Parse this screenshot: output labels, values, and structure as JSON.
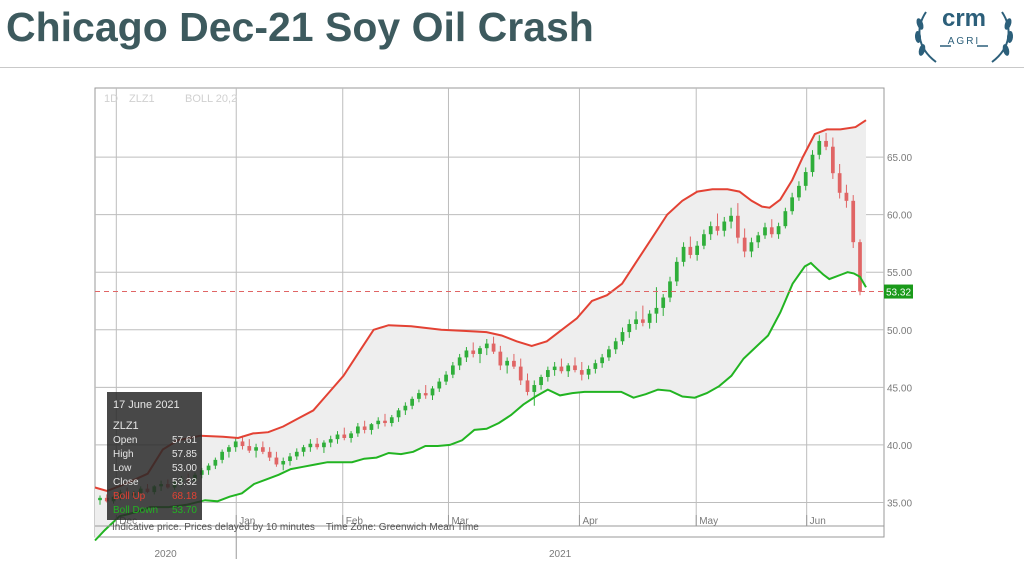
{
  "slide": {
    "title": "Chicago Dec-21 Soy Oil Crash",
    "logo_text": "crm",
    "logo_sub": "AGRI"
  },
  "chart_header": {
    "interval": "1D",
    "symbol": "ZLZ1",
    "indicator": "BOLL 20,2"
  },
  "info_box": {
    "date": "17 June 2021",
    "symbol": "ZLZ1",
    "rows": [
      {
        "label": "Open",
        "value": "57.61",
        "color": "#e6e6e6"
      },
      {
        "label": "High",
        "value": "57.85",
        "color": "#e6e6e6"
      },
      {
        "label": "Low",
        "value": "53.00",
        "color": "#e6e6e6"
      },
      {
        "label": "Close",
        "value": "53.32",
        "color": "#e6e6e6"
      },
      {
        "label": "Boll Up",
        "value": "68.18",
        "color": "#e34234"
      },
      {
        "label": "Boll Down",
        "value": "53.70",
        "color": "#22b422"
      }
    ]
  },
  "footer_note": "Indicative price. Prices delayed by 10 minutes    Time Zone: Greenwich Mean Time",
  "colors": {
    "up": "#2fae3a",
    "down": "#e06565",
    "boll_up": "#e34234",
    "boll_down": "#22b422",
    "band_fill": "#eeeeee",
    "last_price": "#1a9a1a",
    "title": "#3d5a5e"
  },
  "chart_data": {
    "type": "candlestick",
    "symbol": "ZLZ1",
    "ylim": [
      32,
      71
    ],
    "y_ticks": [
      "65.00",
      "60.00",
      "55.00",
      "50.00",
      "45.00",
      "40.00",
      "35.00"
    ],
    "x_months": [
      "Dec",
      "Jan",
      "Feb",
      "Mar",
      "Apr",
      "May",
      "Jun"
    ],
    "x_years": [
      "2020",
      "2021"
    ],
    "last_price": "53.32",
    "last_price_value": 53.32,
    "boll_upper": [
      [
        0,
        36.3
      ],
      [
        8,
        36.0
      ],
      [
        20,
        36.6
      ],
      [
        35,
        37.5
      ],
      [
        45,
        39.6
      ],
      [
        55,
        40.4
      ],
      [
        70,
        40.8
      ],
      [
        85,
        40.7
      ],
      [
        95,
        40.6
      ],
      [
        105,
        41.0
      ],
      [
        115,
        41.1
      ],
      [
        125,
        41.6
      ],
      [
        135,
        42.3
      ],
      [
        145,
        43.0
      ],
      [
        155,
        44.5
      ],
      [
        165,
        46.0
      ],
      [
        175,
        48.0
      ],
      [
        185,
        50.0
      ],
      [
        195,
        50.4
      ],
      [
        210,
        50.3
      ],
      [
        230,
        50.0
      ],
      [
        245,
        49.9
      ],
      [
        260,
        49.8
      ],
      [
        270,
        49.5
      ],
      [
        280,
        49.0
      ],
      [
        290,
        48.6
      ],
      [
        300,
        49.0
      ],
      [
        310,
        50.0
      ],
      [
        320,
        51.0
      ],
      [
        330,
        52.5
      ],
      [
        340,
        53.0
      ],
      [
        350,
        54.0
      ],
      [
        360,
        56.0
      ],
      [
        370,
        58.0
      ],
      [
        380,
        60.0
      ],
      [
        390,
        61.2
      ],
      [
        400,
        62.0
      ],
      [
        410,
        62.2
      ],
      [
        420,
        62.2
      ],
      [
        428,
        62.0
      ],
      [
        436,
        61.2
      ],
      [
        443,
        60.7
      ],
      [
        448,
        60.6
      ],
      [
        455,
        61.3
      ],
      [
        463,
        63.0
      ],
      [
        470,
        65.0
      ],
      [
        478,
        67.0
      ],
      [
        486,
        67.4
      ],
      [
        495,
        67.4
      ],
      [
        505,
        67.6
      ],
      [
        512,
        68.2
      ]
    ],
    "boll_lower": [
      [
        0,
        31.7
      ],
      [
        8,
        32.6
      ],
      [
        20,
        33.8
      ],
      [
        35,
        34.2
      ],
      [
        45,
        34.6
      ],
      [
        60,
        34.6
      ],
      [
        75,
        34.8
      ],
      [
        90,
        35.2
      ],
      [
        100,
        35.1
      ],
      [
        110,
        35.5
      ],
      [
        120,
        35.8
      ],
      [
        130,
        36.6
      ],
      [
        140,
        37.0
      ],
      [
        150,
        37.4
      ],
      [
        160,
        37.9
      ],
      [
        170,
        38.1
      ],
      [
        180,
        38.3
      ],
      [
        190,
        38.5
      ],
      [
        200,
        38.5
      ],
      [
        210,
        38.5
      ],
      [
        220,
        38.8
      ],
      [
        230,
        38.9
      ],
      [
        240,
        39.3
      ],
      [
        250,
        39.2
      ],
      [
        260,
        39.4
      ],
      [
        270,
        39.9
      ],
      [
        280,
        39.9
      ],
      [
        290,
        40.0
      ],
      [
        300,
        40.4
      ],
      [
        310,
        41.3
      ],
      [
        320,
        41.4
      ],
      [
        330,
        41.9
      ],
      [
        340,
        42.6
      ],
      [
        350,
        43.5
      ],
      [
        360,
        44.2
      ],
      [
        370,
        44.8
      ],
      [
        380,
        44.3
      ],
      [
        390,
        44.5
      ],
      [
        400,
        44.6
      ],
      [
        410,
        44.6
      ],
      [
        420,
        44.6
      ],
      [
        430,
        44.6
      ],
      [
        440,
        44.1
      ],
      [
        450,
        44.4
      ],
      [
        460,
        44.8
      ],
      [
        470,
        44.7
      ],
      [
        480,
        44.2
      ],
      [
        490,
        44.1
      ],
      [
        500,
        44.5
      ],
      [
        510,
        45.1
      ],
      [
        520,
        46.0
      ],
      [
        530,
        47.5
      ],
      [
        540,
        48.5
      ],
      [
        550,
        49.5
      ],
      [
        560,
        51.5
      ],
      [
        570,
        54.0
      ],
      [
        580,
        55.5
      ],
      [
        585,
        55.8
      ],
      [
        590,
        55.3
      ],
      [
        595,
        54.8
      ],
      [
        600,
        54.4
      ],
      [
        605,
        54.6
      ],
      [
        610,
        54.8
      ],
      [
        615,
        55.0
      ],
      [
        620,
        54.9
      ],
      [
        625,
        54.6
      ],
      [
        630,
        53.7
      ]
    ],
    "candles_note": "OHLC: [open, high, low, close] per trading day",
    "candles": [
      [
        35.2,
        35.6,
        34.8,
        35.4
      ],
      [
        35.4,
        35.7,
        35.0,
        35.1
      ],
      [
        35.1,
        35.6,
        34.9,
        35.5
      ],
      [
        35.5,
        36.1,
        35.2,
        35.9
      ],
      [
        35.9,
        36.3,
        35.4,
        35.6
      ],
      [
        35.6,
        36.0,
        35.3,
        35.8
      ],
      [
        35.8,
        36.4,
        35.6,
        36.2
      ],
      [
        36.2,
        36.6,
        35.8,
        35.9
      ],
      [
        35.9,
        36.5,
        35.7,
        36.4
      ],
      [
        36.4,
        36.9,
        36.0,
        36.6
      ],
      [
        36.6,
        37.0,
        36.2,
        36.3
      ],
      [
        36.3,
        36.9,
        36.1,
        36.8
      ],
      [
        36.8,
        37.3,
        36.4,
        37.1
      ],
      [
        37.1,
        37.5,
        36.7,
        36.9
      ],
      [
        36.9,
        37.6,
        36.8,
        37.4
      ],
      [
        37.4,
        38.0,
        37.1,
        37.8
      ],
      [
        37.8,
        38.4,
        37.4,
        38.2
      ],
      [
        38.2,
        38.9,
        37.9,
        38.7
      ],
      [
        38.7,
        39.6,
        38.4,
        39.4
      ],
      [
        39.4,
        40.0,
        38.9,
        39.8
      ],
      [
        39.8,
        40.6,
        39.4,
        40.3
      ],
      [
        40.3,
        40.8,
        39.6,
        39.9
      ],
      [
        39.9,
        40.5,
        39.3,
        39.5
      ],
      [
        39.5,
        40.1,
        38.9,
        39.8
      ],
      [
        39.8,
        40.3,
        39.2,
        39.4
      ],
      [
        39.4,
        39.8,
        38.6,
        38.9
      ],
      [
        38.9,
        39.4,
        38.1,
        38.3
      ],
      [
        38.3,
        38.9,
        37.8,
        38.6
      ],
      [
        38.6,
        39.3,
        38.2,
        39.0
      ],
      [
        39.0,
        39.7,
        38.7,
        39.4
      ],
      [
        39.4,
        40.0,
        39.0,
        39.8
      ],
      [
        39.8,
        40.5,
        39.4,
        40.1
      ],
      [
        40.1,
        40.6,
        39.6,
        39.8
      ],
      [
        39.8,
        40.4,
        39.3,
        40.2
      ],
      [
        40.2,
        40.8,
        39.8,
        40.5
      ],
      [
        40.5,
        41.2,
        40.1,
        40.9
      ],
      [
        40.9,
        41.5,
        40.4,
        40.6
      ],
      [
        40.6,
        41.2,
        40.2,
        41.0
      ],
      [
        41.0,
        41.9,
        40.7,
        41.6
      ],
      [
        41.6,
        42.1,
        41.0,
        41.3
      ],
      [
        41.3,
        41.9,
        40.9,
        41.8
      ],
      [
        41.8,
        42.4,
        41.4,
        42.1
      ],
      [
        42.1,
        42.7,
        41.6,
        41.9
      ],
      [
        41.9,
        42.6,
        41.6,
        42.4
      ],
      [
        42.4,
        43.2,
        42.0,
        43.0
      ],
      [
        43.0,
        43.7,
        42.6,
        43.4
      ],
      [
        43.4,
        44.2,
        43.1,
        44.0
      ],
      [
        44.0,
        44.8,
        43.7,
        44.5
      ],
      [
        44.5,
        45.2,
        44.0,
        44.3
      ],
      [
        44.3,
        45.1,
        43.9,
        44.9
      ],
      [
        44.9,
        45.8,
        44.6,
        45.5
      ],
      [
        45.5,
        46.4,
        45.2,
        46.1
      ],
      [
        46.1,
        47.2,
        45.8,
        46.9
      ],
      [
        46.9,
        47.9,
        46.5,
        47.6
      ],
      [
        47.6,
        48.5,
        47.2,
        48.2
      ],
      [
        48.2,
        48.9,
        47.6,
        47.9
      ],
      [
        47.9,
        48.6,
        47.1,
        48.4
      ],
      [
        48.4,
        49.2,
        47.8,
        48.8
      ],
      [
        48.8,
        49.4,
        47.9,
        48.1
      ],
      [
        48.1,
        48.6,
        46.5,
        46.9
      ],
      [
        46.9,
        47.6,
        46.2,
        47.3
      ],
      [
        47.3,
        47.9,
        46.6,
        46.8
      ],
      [
        46.8,
        47.5,
        45.2,
        45.6
      ],
      [
        45.6,
        46.2,
        44.3,
        44.6
      ],
      [
        44.6,
        45.6,
        43.4,
        45.2
      ],
      [
        45.2,
        46.1,
        44.8,
        45.9
      ],
      [
        45.9,
        46.8,
        45.5,
        46.5
      ],
      [
        46.5,
        47.2,
        46.0,
        46.8
      ],
      [
        46.8,
        47.5,
        46.2,
        46.4
      ],
      [
        46.4,
        47.1,
        45.9,
        46.9
      ],
      [
        46.9,
        47.6,
        46.3,
        46.5
      ],
      [
        46.5,
        47.2,
        45.6,
        46.1
      ],
      [
        46.1,
        46.9,
        45.7,
        46.6
      ],
      [
        46.6,
        47.4,
        46.2,
        47.1
      ],
      [
        47.1,
        47.9,
        46.7,
        47.6
      ],
      [
        47.6,
        48.6,
        47.3,
        48.3
      ],
      [
        48.3,
        49.3,
        47.9,
        49.0
      ],
      [
        49.0,
        50.2,
        48.7,
        49.8
      ],
      [
        49.8,
        50.9,
        49.3,
        50.5
      ],
      [
        50.5,
        51.6,
        50.0,
        50.9
      ],
      [
        50.9,
        52.1,
        50.3,
        50.6
      ],
      [
        50.6,
        51.7,
        50.1,
        51.4
      ],
      [
        51.4,
        53.7,
        50.6,
        51.9
      ],
      [
        51.9,
        53.1,
        51.2,
        52.8
      ],
      [
        52.8,
        54.6,
        52.4,
        54.2
      ],
      [
        54.2,
        56.3,
        53.8,
        55.9
      ],
      [
        55.9,
        57.6,
        55.5,
        57.2
      ],
      [
        57.2,
        58.1,
        56.2,
        56.5
      ],
      [
        56.5,
        57.7,
        56.0,
        57.3
      ],
      [
        57.3,
        58.7,
        57.0,
        58.3
      ],
      [
        58.3,
        59.4,
        57.8,
        59.0
      ],
      [
        59.0,
        60.1,
        58.2,
        58.6
      ],
      [
        58.6,
        59.8,
        58.1,
        59.4
      ],
      [
        59.4,
        60.6,
        58.8,
        59.9
      ],
      [
        59.9,
        61.0,
        57.5,
        58.0
      ],
      [
        58.0,
        58.8,
        56.3,
        56.8
      ],
      [
        56.8,
        58.0,
        56.3,
        57.6
      ],
      [
        57.6,
        58.5,
        57.1,
        58.2
      ],
      [
        58.2,
        59.3,
        57.9,
        58.9
      ],
      [
        58.9,
        59.6,
        58.0,
        58.3
      ],
      [
        58.3,
        59.3,
        57.9,
        59.0
      ],
      [
        59.0,
        60.6,
        58.8,
        60.3
      ],
      [
        60.3,
        61.9,
        60.0,
        61.5
      ],
      [
        61.5,
        62.9,
        61.2,
        62.5
      ],
      [
        62.5,
        64.1,
        62.1,
        63.7
      ],
      [
        63.7,
        65.6,
        63.3,
        65.2
      ],
      [
        65.2,
        66.9,
        64.8,
        66.4
      ],
      [
        66.4,
        67.1,
        65.6,
        65.9
      ],
      [
        65.9,
        66.7,
        63.1,
        63.6
      ],
      [
        63.6,
        64.4,
        61.4,
        61.9
      ],
      [
        61.9,
        62.6,
        60.6,
        61.2
      ],
      [
        61.2,
        61.7,
        57.1,
        57.61
      ],
      [
        57.61,
        57.85,
        53.0,
        53.32
      ]
    ]
  }
}
